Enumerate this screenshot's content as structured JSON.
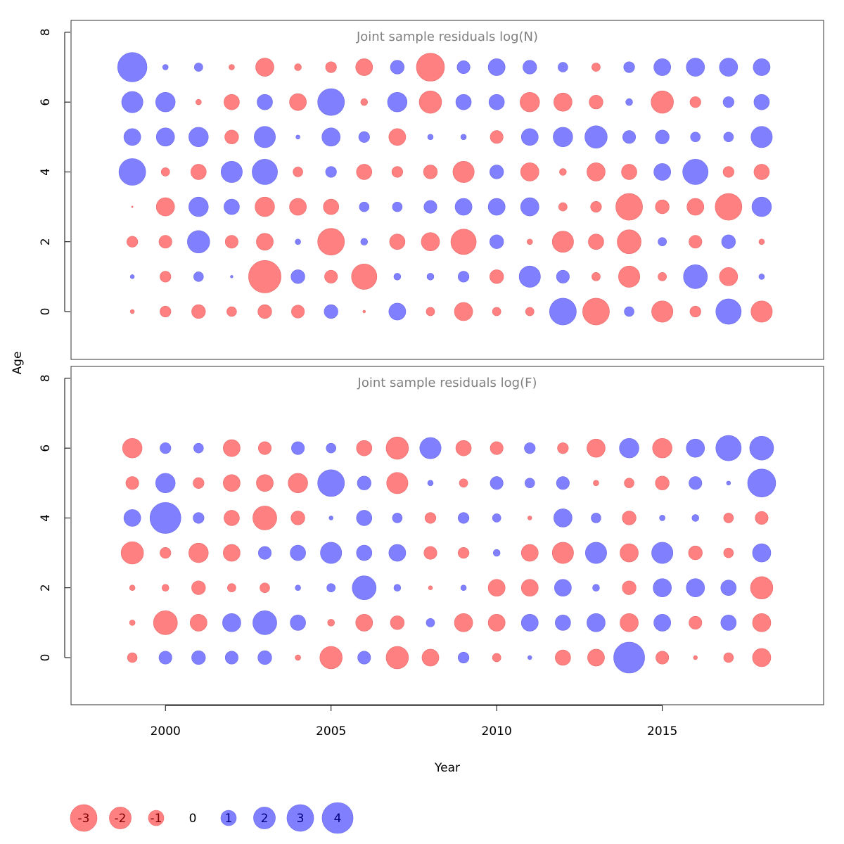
{
  "chart_data": [
    {
      "type": "bubble",
      "title": "Joint sample residuals log(N)",
      "x": [
        1999,
        2000,
        2001,
        2002,
        2003,
        2004,
        2005,
        2006,
        2007,
        2008,
        2009,
        2010,
        2011,
        2012,
        2013,
        2014,
        2015,
        2016,
        2017,
        2018
      ],
      "y": [
        7,
        6,
        5,
        4,
        3,
        2,
        1,
        0
      ],
      "values": [
        [
          3.6,
          0.13,
          0.3,
          -0.13,
          -1.4,
          -0.2,
          -0.5,
          -1.2,
          0.8,
          -3.3,
          0.7,
          1.2,
          0.8,
          0.4,
          -0.3,
          0.5,
          1.2,
          1.4,
          1.4,
          1.2
        ],
        [
          1.9,
          1.6,
          -0.13,
          -1,
          1,
          -1.2,
          3,
          -0.2,
          1.6,
          -2.1,
          1,
          1,
          -1.6,
          -1.4,
          -0.8,
          0.2,
          -2.1,
          -0.5,
          0.5,
          1
        ],
        [
          1.2,
          1.4,
          1.6,
          -0.8,
          1.9,
          0.07,
          1.4,
          0.5,
          -1.2,
          0.13,
          0.13,
          -0.7,
          1.2,
          1.6,
          2.1,
          0.7,
          0.8,
          0.4,
          0.4,
          1.9
        ],
        [
          3,
          -0.3,
          -1,
          1.9,
          2.7,
          -0.4,
          0.5,
          -1,
          -0.5,
          -0.8,
          -1.9,
          0.8,
          -1.4,
          -0.2,
          -1.4,
          -1,
          1.2,
          2.7,
          -0.5,
          -1
        ],
        [
          -0.01,
          -1.4,
          1.6,
          1,
          -1.6,
          -1.2,
          -1,
          0.4,
          0.4,
          0.7,
          1.2,
          1.2,
          1.4,
          -0.3,
          -0.5,
          -3,
          -0.8,
          -1.2,
          -3,
          1.6
        ],
        [
          -0.5,
          -0.7,
          2.1,
          -0.7,
          -1.2,
          0.13,
          -3,
          0.2,
          -1,
          -1.4,
          -2.7,
          0.8,
          -0.13,
          -1.9,
          -1,
          -2.4,
          0.3,
          -0.7,
          0.8,
          -0.13
        ],
        [
          0.07,
          -0.5,
          0.4,
          0.03,
          -4.4,
          0.8,
          -0.7,
          -2.7,
          0.2,
          0.2,
          0.5,
          -0.8,
          1.9,
          0.7,
          -0.3,
          -1.9,
          -0.3,
          2.4,
          -1.4,
          0.13
        ],
        [
          -0.07,
          -0.5,
          -0.8,
          -0.4,
          -0.8,
          -0.7,
          0.8,
          -0.03,
          1.2,
          -0.3,
          -1.4,
          -0.3,
          -0.3,
          3,
          -3,
          0.4,
          -1.9,
          -0.5,
          2.7,
          -1.9
        ]
      ],
      "xlim": [
        1997.15,
        2019.87
      ],
      "ylim": [
        -1.37,
        8.34
      ],
      "yticks": [
        0,
        2,
        4,
        6,
        8
      ],
      "positive_color": "#8080ff",
      "negative_color": "#ff8080"
    },
    {
      "type": "bubble",
      "title": "Joint sample residuals log(F)",
      "x": [
        1999,
        2000,
        2001,
        2002,
        2003,
        2004,
        2005,
        2006,
        2007,
        2008,
        2009,
        2010,
        2011,
        2012,
        2013,
        2014,
        2015,
        2016,
        2017,
        2018
      ],
      "y": [
        6,
        5,
        4,
        3,
        2,
        1,
        0
      ],
      "values": [
        [
          -1.6,
          0.5,
          0.4,
          -1.2,
          -0.7,
          0.7,
          0.4,
          -1,
          -2.1,
          1.9,
          -1,
          -0.7,
          0.5,
          -0.5,
          -1.4,
          1.6,
          -1.6,
          1.4,
          2.7,
          2.4
        ],
        [
          -0.7,
          1.6,
          -0.5,
          -1.2,
          -1.2,
          -1.6,
          3,
          0.8,
          -1.9,
          0.13,
          -0.3,
          0.7,
          0.4,
          0.7,
          -0.13,
          -0.4,
          -0.8,
          0.7,
          0.07,
          3.3
        ],
        [
          1.2,
          4,
          0.5,
          -1,
          -2.4,
          -0.8,
          0.07,
          1,
          0.4,
          -0.5,
          0.5,
          0.3,
          -0.07,
          1.4,
          0.4,
          -0.8,
          0.13,
          0.2,
          -0.4,
          -0.7
        ],
        [
          -2.1,
          -0.5,
          -1.6,
          -1.2,
          0.7,
          1,
          1.9,
          1,
          1.2,
          -0.7,
          -0.5,
          0.2,
          -1.2,
          -1.9,
          1.9,
          -1.4,
          1.9,
          -0.8,
          -0.4,
          1.4
        ],
        [
          -0.13,
          -0.2,
          -0.8,
          -0.3,
          -0.4,
          0.13,
          0.3,
          2.4,
          0.2,
          -0.07,
          0.13,
          -1.2,
          -1.2,
          1.2,
          0.2,
          -0.8,
          1.4,
          1.4,
          1,
          -2.1
        ],
        [
          -0.13,
          -2.4,
          -1.2,
          1.4,
          2.4,
          1,
          -0.2,
          -1.2,
          -0.8,
          0.3,
          -1.4,
          -1.2,
          1.2,
          1,
          1.4,
          -1.4,
          1.2,
          -0.7,
          1,
          -1.4
        ],
        [
          -0.4,
          0.7,
          0.8,
          0.7,
          0.8,
          -0.13,
          -2.1,
          0.7,
          -2.1,
          -1.2,
          0.5,
          -0.3,
          0.07,
          -1,
          -1.2,
          4,
          -0.7,
          -0.07,
          -0.4,
          -1.4
        ]
      ],
      "xlim": [
        1997.15,
        2019.87
      ],
      "ylim": [
        -1.35,
        8.34
      ],
      "yticks": [
        0,
        2,
        4,
        6,
        8
      ],
      "xticks": [
        2000,
        2005,
        2010,
        2015
      ],
      "positive_color": "#8080ff",
      "negative_color": "#ff8080"
    }
  ],
  "xlabel": "Year",
  "ylabel": "Age",
  "legend": {
    "values": [
      -3,
      -2,
      -1,
      0,
      1,
      2,
      3,
      4
    ]
  }
}
